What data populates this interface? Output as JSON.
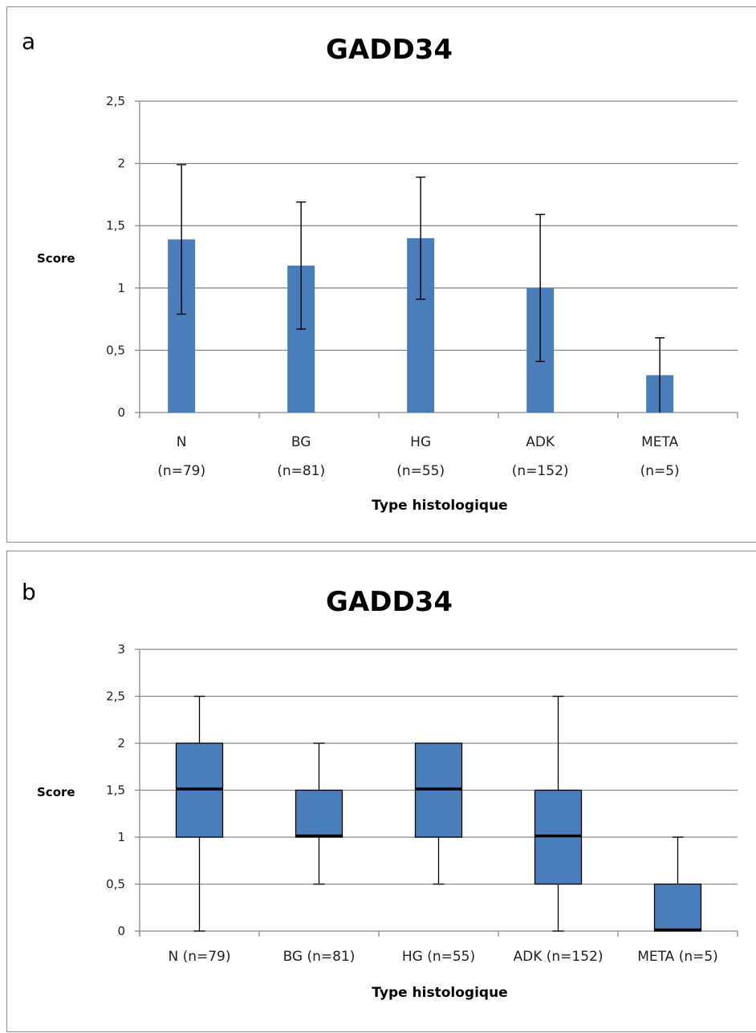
{
  "chart_data": [
    {
      "type": "bar",
      "panel_label": "a",
      "title": "GADD34",
      "ylabel": "Score",
      "xlabel": "Type histologique",
      "ylim": [
        0,
        2.5
      ],
      "yticks": [
        "0",
        "0,5",
        "1",
        "1,5",
        "2",
        "2,5"
      ],
      "categories": [
        "N\n(n=79)",
        "BG\n(n=81)",
        "HG\n(n=55)",
        "ADK\n(n=152)",
        "META\n(n=5)"
      ],
      "category_lines": [
        [
          "N",
          "(n=79)"
        ],
        [
          "BG",
          "(n=81)"
        ],
        [
          "HG",
          "(n=55)"
        ],
        [
          "ADK",
          "(n=152)"
        ],
        [
          "META",
          "(n=5)"
        ]
      ],
      "values": [
        1.39,
        1.18,
        1.4,
        1.0,
        0.3
      ],
      "error": [
        0.6,
        0.51,
        0.49,
        0.59,
        0.3
      ],
      "grid": true,
      "bar_color": "#4a7ebb"
    },
    {
      "type": "boxplot",
      "panel_label": "b",
      "title": "GADD34",
      "ylabel": "Score",
      "xlabel": "Type histologique",
      "ylim": [
        0,
        3
      ],
      "yticks": [
        "0",
        "0,5",
        "1",
        "1,5",
        "2",
        "2,5",
        "3"
      ],
      "categories": [
        "N (n=79)",
        "BG (n=81)",
        "HG (n=55)",
        "ADK (n=152)",
        "META (n=5)"
      ],
      "boxes": [
        {
          "min": 0,
          "q1": 1.0,
          "median": 1.5,
          "q3": 2.0,
          "max": 2.5
        },
        {
          "min": 0.5,
          "q1": 1.0,
          "median": 1.0,
          "q3": 1.5,
          "max": 2.0
        },
        {
          "min": 0.5,
          "q1": 1.0,
          "median": 1.5,
          "q3": 2.0,
          "max": 2.0
        },
        {
          "min": 0,
          "q1": 0.5,
          "median": 1.0,
          "q3": 1.5,
          "max": 2.5
        },
        {
          "min": 0,
          "q1": 0,
          "median": 0,
          "q3": 0.5,
          "max": 1.0
        }
      ],
      "grid": true,
      "box_color": "#4a7ebb"
    }
  ]
}
